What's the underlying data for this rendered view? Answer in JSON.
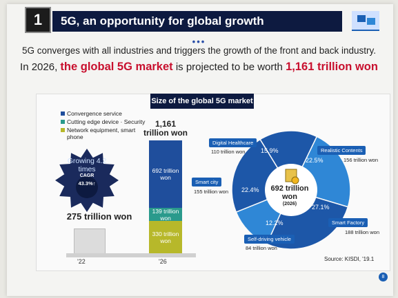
{
  "header": {
    "number": "1",
    "title": "5G, an opportunity for global growth",
    "dots": "•••"
  },
  "subtitle": {
    "line1": "5G converges with all industries and triggers the growth of the front and back industry.",
    "line2_pre": "In 2026,",
    "line2_hl1": "the global 5G market",
    "line2_mid": "is projected to be worth",
    "line2_hl2": "1,161 trillion won"
  },
  "panel": {
    "title": "Size of the global 5G market",
    "source": "Source: KISDI, '19.1",
    "page": "8"
  },
  "colors": {
    "convergence": "#1f4e9c",
    "edge": "#2a9a8c",
    "network": "#b7b82a",
    "pie_dark": "#1d57a8",
    "pie_light": "#2f87d6"
  },
  "chart_data": [
    {
      "type": "bar",
      "title": "",
      "legend": [
        "Convergence service",
        "Cutting edge device · Security",
        "Network equipment, smart phone"
      ],
      "categories": [
        "'22",
        "'26"
      ],
      "totals": [
        "275 trillion won",
        "1,161 trillion won"
      ],
      "total_labels": {
        "t22": "275 trillion won",
        "t26_num": "1,161",
        "t26_unit": "trillion won"
      },
      "series": [
        {
          "name": "Convergence service",
          "values": [
            null,
            692
          ],
          "label": "692 trillion won"
        },
        {
          "name": "Cutting edge device · Security",
          "values": [
            null,
            139
          ],
          "label": "139 trillion won"
        },
        {
          "name": "Network equipment, smart phone",
          "values": [
            null,
            330
          ],
          "label": "330 trillion won"
        }
      ],
      "growth": {
        "line1": "Growing 4.2",
        "line2": "times",
        "cagr_label": "CAGR",
        "cagr_value": "43.3%↑"
      }
    },
    {
      "type": "pie",
      "center": {
        "value": "692 trillion won",
        "year": "(2026)"
      },
      "slices": [
        {
          "name": "Digital Healthcare",
          "value": 15.9,
          "pct": "15.9%",
          "amount": "110 trillion won"
        },
        {
          "name": "Realistic Contents",
          "value": 22.5,
          "pct": "22.5%",
          "amount": "156 trillion won"
        },
        {
          "name": "Smart Factory",
          "value": 27.1,
          "pct": "27.1%",
          "amount": "188 trillion won"
        },
        {
          "name": "Self-driving vehicle",
          "value": 12.2,
          "pct": "12.2%",
          "amount": "84 trillion won"
        },
        {
          "name": "Smart city",
          "value": 22.4,
          "pct": "22.4%",
          "amount": "155 trillion won"
        }
      ]
    }
  ],
  "icons": {
    "center": "coins-document-icon",
    "header": "network-cube-icon"
  }
}
